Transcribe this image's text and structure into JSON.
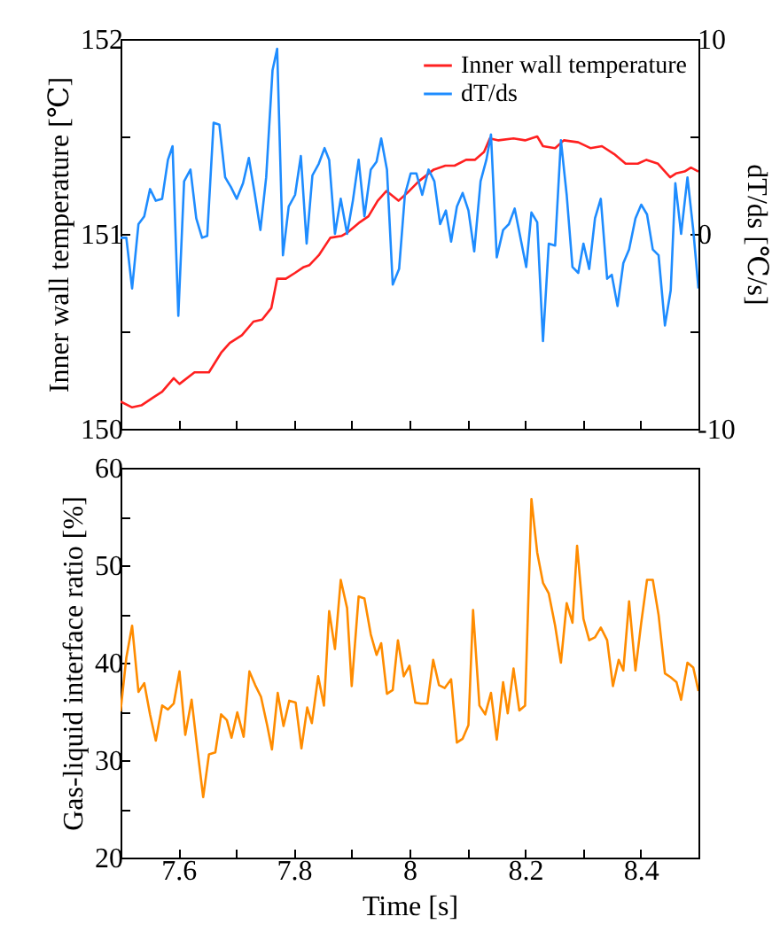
{
  "chart_data": [
    {
      "type": "line",
      "ylabel": "Inner wall temperature [℃]",
      "y2label": "dT/ds [℃/s]",
      "xlim": [
        7.5,
        8.5
      ],
      "xticks": [
        7.6,
        {
          "value": 7.7,
          "label": null
        },
        7.8,
        {
          "value": 7.9,
          "label": null
        },
        8,
        {
          "value": 8.1,
          "label": null
        },
        8.2,
        {
          "value": 8.3,
          "label": null
        },
        8.4
      ],
      "ylim": [
        150,
        152
      ],
      "yticks": [
        150,
        {
          "value": 150.5,
          "label": null
        },
        151,
        {
          "value": 151.5,
          "label": null
        },
        152
      ],
      "y2lim": [
        -10,
        10
      ],
      "y2ticks": [
        -10,
        {
          "value": -5,
          "label": null
        },
        0,
        {
          "value": 5,
          "label": null
        },
        10
      ],
      "tick_labels": "y",
      "legend": "top right",
      "grid": false,
      "series": [
        {
          "name": "Inner wall temperature",
          "color": "#ff2020",
          "x": [
            7.5,
            7.52,
            7.536,
            7.556,
            7.572,
            7.592,
            7.602,
            7.628,
            7.653,
            7.674,
            7.689,
            7.71,
            7.73,
            7.745,
            7.761,
            7.771,
            7.786,
            7.802,
            7.817,
            7.827,
            7.843,
            7.863,
            7.883,
            7.894,
            7.914,
            7.929,
            7.945,
            7.96,
            7.981,
            7.996,
            8.016,
            8.042,
            8.062,
            8.078,
            8.098,
            8.113,
            8.129,
            8.139,
            8.154,
            8.18,
            8.2,
            8.221,
            8.231,
            8.252,
            8.267,
            8.292,
            8.313,
            8.333,
            8.354,
            8.374,
            8.395,
            8.41,
            8.43,
            8.451,
            8.461,
            8.476,
            8.487,
            8.5
          ],
          "values": [
            150.14,
            150.11,
            150.12,
            150.16,
            150.19,
            150.26,
            150.23,
            150.29,
            150.29,
            150.39,
            150.44,
            150.48,
            150.55,
            150.56,
            150.62,
            150.77,
            150.77,
            150.8,
            150.83,
            150.84,
            150.89,
            150.98,
            150.99,
            151.01,
            151.06,
            151.09,
            151.17,
            151.22,
            151.17,
            151.21,
            151.27,
            151.33,
            151.35,
            151.35,
            151.38,
            151.38,
            151.42,
            151.49,
            151.48,
            151.49,
            151.48,
            151.5,
            151.45,
            151.44,
            151.48,
            151.47,
            151.44,
            151.45,
            151.41,
            151.36,
            151.36,
            151.38,
            151.36,
            151.29,
            151.31,
            151.32,
            151.34,
            151.32
          ]
        },
        {
          "name": "dT/ds",
          "color": "#1e8cff",
          "axis": "y2",
          "x": [
            7.5,
            7.51,
            7.52,
            7.531,
            7.541,
            7.551,
            7.561,
            7.572,
            7.582,
            7.59,
            7.6,
            7.61,
            7.621,
            7.631,
            7.641,
            7.65,
            7.661,
            7.671,
            7.681,
            7.691,
            7.701,
            7.712,
            7.722,
            7.732,
            7.742,
            7.752,
            7.763,
            7.771,
            7.781,
            7.791,
            7.802,
            7.812,
            7.822,
            7.832,
            7.843,
            7.853,
            7.861,
            7.871,
            7.881,
            7.892,
            7.902,
            7.912,
            7.922,
            7.933,
            7.943,
            7.951,
            7.961,
            7.971,
            7.982,
            7.992,
            8.002,
            8.012,
            8.022,
            8.033,
            8.043,
            8.053,
            8.063,
            8.072,
            8.082,
            8.092,
            8.102,
            8.112,
            8.123,
            8.133,
            8.141,
            8.151,
            8.162,
            8.172,
            8.182,
            8.192,
            8.202,
            8.211,
            8.221,
            8.231,
            8.241,
            8.252,
            8.262,
            8.272,
            8.282,
            8.292,
            8.301,
            8.311,
            8.321,
            8.331,
            8.342,
            8.35,
            8.36,
            8.37,
            8.38,
            8.391,
            8.401,
            8.411,
            8.421,
            8.431,
            8.442,
            8.452,
            8.46,
            8.47,
            8.481,
            8.491,
            8.5
          ],
          "values": [
            -0.2,
            -0.2,
            -2.8,
            0.5,
            0.9,
            2.3,
            1.7,
            1.8,
            3.8,
            4.5,
            -4.2,
            2.7,
            3.3,
            0.8,
            -0.2,
            -0.1,
            5.7,
            5.6,
            2.9,
            2.4,
            1.8,
            2.6,
            3.9,
            2.1,
            0.2,
            2.9,
            8.4,
            9.5,
            -1.1,
            1.4,
            2.0,
            4.0,
            -0.5,
            3.0,
            3.6,
            4.4,
            3.8,
            0.0,
            1.8,
            0.0,
            1.7,
            3.8,
            0.9,
            3.3,
            3.7,
            4.9,
            3.3,
            -2.6,
            -1.8,
            2.0,
            3.1,
            3.1,
            2.0,
            3.3,
            2.7,
            0.5,
            1.2,
            -0.4,
            1.4,
            2.1,
            1.2,
            -0.9,
            2.7,
            3.8,
            5.1,
            -1.2,
            0.2,
            0.5,
            1.3,
            -0.2,
            -1.7,
            1.1,
            0.6,
            -5.5,
            -0.5,
            -0.6,
            4.8,
            2.0,
            -1.7,
            -2.0,
            -0.5,
            -1.8,
            0.8,
            1.8,
            -2.3,
            -2.1,
            -3.7,
            -1.5,
            -0.8,
            0.8,
            1.5,
            1.0,
            -0.8,
            -1.1,
            -4.7,
            -2.9,
            2.6,
            0.0,
            2.9,
            0.2,
            -2.8
          ]
        }
      ]
    },
    {
      "type": "line",
      "xlabel": "Time [s]",
      "ylabel": "Gas-liquid interface ratio [%]",
      "xlim": [
        7.5,
        8.5
      ],
      "xticks": [
        7.6,
        {
          "value": 7.7,
          "label": null
        },
        7.8,
        {
          "value": 7.9,
          "label": null
        },
        8,
        {
          "value": 8.1,
          "label": null
        },
        8.2,
        {
          "value": 8.3,
          "label": null
        },
        8.4
      ],
      "ylim": [
        20,
        60
      ],
      "yticks": [
        20,
        {
          "value": 25,
          "label": null
        },
        30,
        {
          "value": 35,
          "label": null
        },
        40,
        {
          "value": 45,
          "label": null
        },
        50,
        {
          "value": 55,
          "label": null
        },
        60
      ],
      "grid": false,
      "series": [
        {
          "color": "#ff8c00",
          "x": [
            7.5,
            7.51,
            7.52,
            7.531,
            7.541,
            7.551,
            7.561,
            7.572,
            7.582,
            7.592,
            7.602,
            7.612,
            7.623,
            7.633,
            7.643,
            7.653,
            7.664,
            7.674,
            7.684,
            7.692,
            7.702,
            7.713,
            7.723,
            7.733,
            7.743,
            7.754,
            7.762,
            7.772,
            7.782,
            7.792,
            7.803,
            7.813,
            7.823,
            7.831,
            7.842,
            7.852,
            7.861,
            7.871,
            7.881,
            7.892,
            7.9,
            7.912,
            7.922,
            7.933,
            7.943,
            7.951,
            7.961,
            7.971,
            7.98,
            7.99,
            8.0,
            8.01,
            8.02,
            8.031,
            8.041,
            8.051,
            8.061,
            8.072,
            8.082,
            8.092,
            8.102,
            8.11,
            8.121,
            8.131,
            8.141,
            8.151,
            8.162,
            8.17,
            8.18,
            8.19,
            8.2,
            8.211,
            8.221,
            8.231,
            8.241,
            8.252,
            8.262,
            8.272,
            8.282,
            8.29,
            8.301,
            8.311,
            8.321,
            8.331,
            8.342,
            8.352,
            8.362,
            8.37,
            8.38,
            8.391,
            8.401,
            8.411,
            8.421,
            8.431,
            8.442,
            8.452,
            8.462,
            8.47,
            8.481,
            8.491,
            8.5
          ],
          "values": [
            35.0,
            40.5,
            43.8,
            37.0,
            37.9,
            34.7,
            32.0,
            35.6,
            35.2,
            35.8,
            39.1,
            32.6,
            36.2,
            31.1,
            26.2,
            30.6,
            30.8,
            34.7,
            34.1,
            32.3,
            34.9,
            32.4,
            39.1,
            37.7,
            36.5,
            33.5,
            31.1,
            36.9,
            33.5,
            36.1,
            35.9,
            31.2,
            35.4,
            33.8,
            38.6,
            35.6,
            45.3,
            41.4,
            48.5,
            45.6,
            37.6,
            46.8,
            46.6,
            42.9,
            40.8,
            42.0,
            36.8,
            37.2,
            42.3,
            38.6,
            39.7,
            35.9,
            35.8,
            35.8,
            40.3,
            37.7,
            37.4,
            38.3,
            31.8,
            32.2,
            33.6,
            45.4,
            35.6,
            34.7,
            36.9,
            32.1,
            38.0,
            34.8,
            39.4,
            35.1,
            35.6,
            56.8,
            51.3,
            48.2,
            47.1,
            43.8,
            40.0,
            46.1,
            44.1,
            52.0,
            44.5,
            42.3,
            42.6,
            43.6,
            42.3,
            37.6,
            40.3,
            39.2,
            46.3,
            39.2,
            44.1,
            48.5,
            48.5,
            44.9,
            38.9,
            38.5,
            38.0,
            36.2,
            40.0,
            39.5,
            37.1
          ]
        }
      ]
    }
  ]
}
